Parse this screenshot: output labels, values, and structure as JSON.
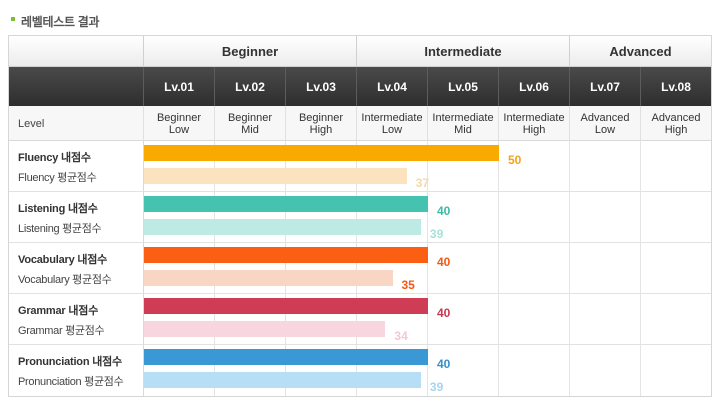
{
  "section_title": "레벨테스트 결과",
  "groups": [
    {
      "label": "Beginner"
    },
    {
      "label": "Intermediate"
    },
    {
      "label": "Advanced"
    }
  ],
  "levels": [
    {
      "code": "Lv.01",
      "desc": "Beginner\nLow"
    },
    {
      "code": "Lv.02",
      "desc": "Beginner\nMid"
    },
    {
      "code": "Lv.03",
      "desc": "Beginner\nHigh"
    },
    {
      "code": "Lv.04",
      "desc": "Intermediate\nLow"
    },
    {
      "code": "Lv.05",
      "desc": "Intermediate\nMid"
    },
    {
      "code": "Lv.06",
      "desc": "Intermediate\nHigh"
    },
    {
      "code": "Lv.07",
      "desc": "Advanced\nLow"
    },
    {
      "code": "Lv.08",
      "desc": "Advanced\nHigh"
    }
  ],
  "level_label": "Level",
  "max_score": 80,
  "skills": [
    {
      "name": "Fluency 내점수",
      "avg_label": "Fluency 평균점수",
      "mine": 50,
      "avg": 37,
      "mine_color": "#f9aa00",
      "avg_color": "#fbe3bf",
      "mine_text_color": "#f2a21c",
      "avg_text_color": "#f6d9a7"
    },
    {
      "name": "Listening 내점수",
      "avg_label": "Listening 평균점수",
      "mine": 40,
      "avg": 39,
      "mine_color": "#46c3b0",
      "avg_color": "#bdeae3",
      "mine_text_color": "#3cb9a7",
      "avg_text_color": "#a9e1d9"
    },
    {
      "name": "Vocabulary 내점수",
      "avg_label": "Vocabulary 평균점수",
      "mine": 40,
      "avg": 35,
      "mine_color": "#fb5f14",
      "avg_color": "#f8d6c3",
      "mine_text_color": "#f05a14",
      "avg_text_color": "#f05a14"
    },
    {
      "name": "Grammar 내점수",
      "avg_label": "Grammar 평균점수",
      "mine": 40,
      "avg": 34,
      "mine_color": "#cf3c55",
      "avg_color": "#f7d6de",
      "mine_text_color": "#c7364f",
      "avg_text_color": "#f2c9d3"
    },
    {
      "name": "Pronunciation 내점수",
      "avg_label": "Pronunciation 평균점수",
      "mine": 40,
      "avg": 39,
      "mine_color": "#3a98d4",
      "avg_color": "#b6def4",
      "mine_text_color": "#348fcb",
      "avg_text_color": "#a6d4ef"
    }
  ]
}
